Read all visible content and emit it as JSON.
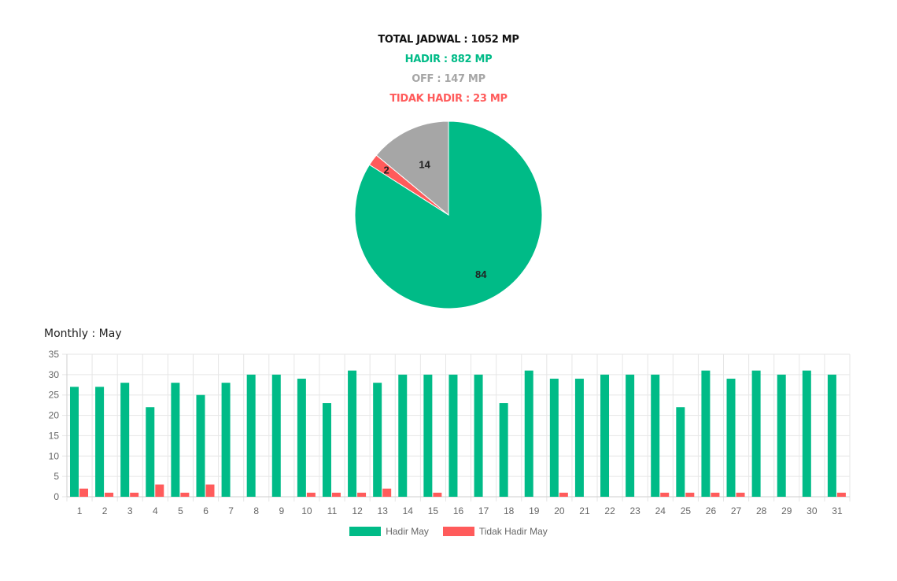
{
  "summary": {
    "total": "TOTAL JADWAL : 1052 MP",
    "hadir": "HADIR : 882 MP",
    "off": "OFF : 147 MP",
    "tidak_hadir": "TIDAK HADIR : 23 MP"
  },
  "colors": {
    "hadir": "#00bb87",
    "off": "#a6a6a6",
    "tidak_hadir": "#ff5b5b",
    "grid": "#e6e6e6",
    "axis_text": "#666666"
  },
  "chart_data": [
    {
      "type": "pie",
      "slices": [
        {
          "label": "84",
          "value": 84,
          "color": "#00bb87"
        },
        {
          "label": "2",
          "value": 2,
          "color": "#ff5b5b"
        },
        {
          "label": "14",
          "value": 14,
          "color": "#a6a6a6"
        }
      ]
    },
    {
      "type": "bar",
      "title": "Monthly : May",
      "categories": [
        "1",
        "2",
        "3",
        "4",
        "5",
        "6",
        "7",
        "8",
        "9",
        "10",
        "11",
        "12",
        "13",
        "14",
        "15",
        "16",
        "17",
        "18",
        "19",
        "20",
        "21",
        "22",
        "23",
        "24",
        "25",
        "26",
        "27",
        "28",
        "29",
        "30",
        "31"
      ],
      "ylim": [
        0,
        35
      ],
      "yticks": [
        0,
        5,
        10,
        15,
        20,
        25,
        30,
        35
      ],
      "grid": true,
      "legend": "bottom",
      "series": [
        {
          "name": "Hadir May",
          "color": "#00bb87",
          "values": [
            27,
            27,
            28,
            22,
            28,
            25,
            28,
            30,
            30,
            29,
            23,
            31,
            28,
            30,
            30,
            30,
            30,
            23,
            31,
            29,
            29,
            30,
            30,
            30,
            22,
            31,
            29,
            31,
            30,
            31,
            30
          ]
        },
        {
          "name": "Tidak Hadir May",
          "color": "#ff5b5b",
          "values": [
            2,
            1,
            1,
            3,
            1,
            3,
            0,
            0,
            0,
            1,
            1,
            1,
            2,
            0,
            1,
            0,
            0,
            0,
            0,
            1,
            0,
            0,
            0,
            1,
            1,
            1,
            1,
            0,
            0,
            0,
            1
          ]
        }
      ]
    }
  ]
}
